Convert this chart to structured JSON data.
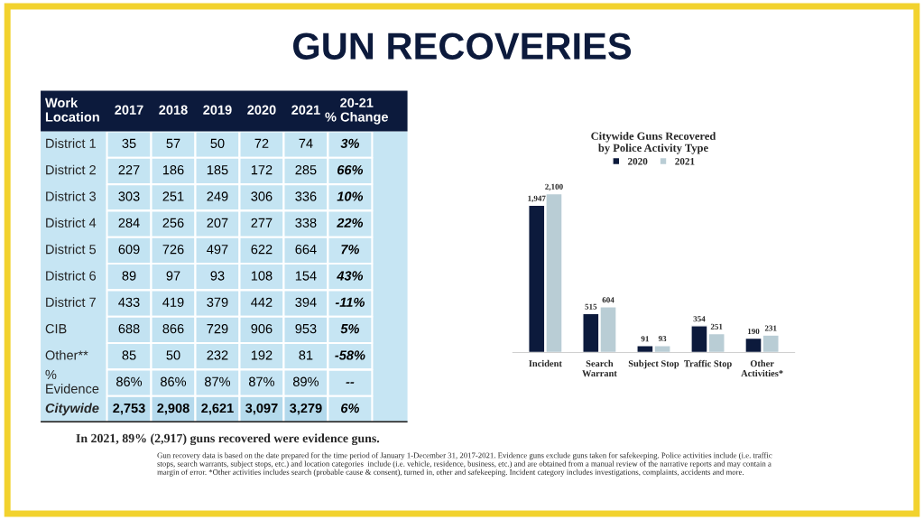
{
  "chart_data": [
    {
      "type": "heatmap",
      "title": "GUN RECOVERIES",
      "ylabel": "Work Location",
      "categories": [
        "2017",
        "2018",
        "2019",
        "2020",
        "2021",
        "20-21 % Change"
      ],
      "y_categories": [
        "District 1",
        "District 2",
        "District 3",
        "District 4",
        "District 5",
        "District 6",
        "District 7",
        "CIB",
        "Other**",
        "% Evidence",
        "Citywide"
      ],
      "cells": [
        [
          35,
          57,
          50,
          72,
          74,
          3
        ],
        [
          227,
          186,
          185,
          172,
          285,
          66
        ],
        [
          303,
          251,
          249,
          306,
          336,
          10
        ],
        [
          284,
          256,
          207,
          277,
          338,
          22
        ],
        [
          609,
          726,
          497,
          622,
          664,
          7
        ],
        [
          89,
          97,
          93,
          108,
          154,
          43
        ],
        [
          433,
          419,
          379,
          442,
          394,
          -11
        ],
        [
          688,
          866,
          729,
          906,
          953,
          5
        ],
        [
          85,
          50,
          232,
          192,
          81,
          -58
        ],
        [
          86,
          86,
          87,
          87,
          89,
          null
        ],
        [
          2753,
          2908,
          2621,
          3097,
          3279,
          6
        ]
      ],
      "cell_labels": [
        [
          "35",
          "57",
          "50",
          "72",
          "74",
          "3%"
        ],
        [
          "227",
          "186",
          "185",
          "172",
          "285",
          "66%"
        ],
        [
          "303",
          "251",
          "249",
          "306",
          "336",
          "10%"
        ],
        [
          "284",
          "256",
          "207",
          "277",
          "338",
          "22%"
        ],
        [
          "609",
          "726",
          "497",
          "622",
          "664",
          "7%"
        ],
        [
          "89",
          "97",
          "93",
          "108",
          "154",
          "43%"
        ],
        [
          "433",
          "419",
          "379",
          "442",
          "394",
          "-11%"
        ],
        [
          "688",
          "866",
          "729",
          "906",
          "953",
          "5%"
        ],
        [
          "85",
          "50",
          "232",
          "192",
          "81",
          "-58%"
        ],
        [
          "86%",
          "86%",
          "87%",
          "87%",
          "89%",
          "--"
        ],
        [
          "2,753",
          "2,908",
          "2,621",
          "3,097",
          "3,279",
          "6%"
        ]
      ],
      "annotations": [
        "In 2021, 89% (2,917) guns recovered were evidence guns.",
        "Gun recovery data is based on the date prepared for the time period of January 1-December 31, 2017-2021. Evidence guns exclude guns taken for safekeeping. Police activities include (i.e. traffic stops, search warrants, subject stops, etc.) and location categories  include (i.e. vehicle, residence, business, etc.) and are obtained from a manual review of the narrative reports and may contain a margin of error. *Other activities includes search (probable cause & consent), turned in, other and safekeeping. Incident category includes investigations, complaints, accidents and more."
      ]
    },
    {
      "type": "bar",
      "title": "Citywide Guns Recovered\nby Police Activity Type",
      "categories": [
        "Incident",
        "Search\nWarrant",
        "Subject Stop",
        "Traffic Stop",
        "Other\nActivities*"
      ],
      "series": [
        {
          "name": "2020",
          "color": "#0c1a3c",
          "values": [
            1947,
            515,
            91,
            354,
            190
          ],
          "value_labels": [
            "1,947",
            "515",
            "91",
            "354",
            "190"
          ]
        },
        {
          "name": "2021",
          "color": "#b9cdd5",
          "values": [
            2100,
            604,
            93,
            251,
            231
          ],
          "value_labels": [
            "2,100",
            "604",
            "93",
            "251",
            "231"
          ]
        }
      ],
      "legend": "top"
    }
  ]
}
